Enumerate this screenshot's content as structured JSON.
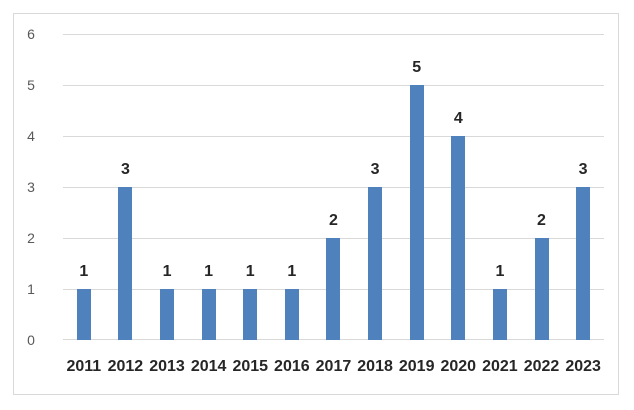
{
  "chart_data": {
    "type": "bar",
    "categories": [
      "2011",
      "2012",
      "2013",
      "2014",
      "2015",
      "2016",
      "2017",
      "2018",
      "2019",
      "2020",
      "2021",
      "2022",
      "2023"
    ],
    "values": [
      1,
      3,
      1,
      1,
      1,
      1,
      2,
      3,
      5,
      4,
      1,
      2,
      3
    ],
    "data_labels": [
      "1",
      "3",
      "1",
      "1",
      "1",
      "1",
      "2",
      "3",
      "5",
      "4",
      "1",
      "2",
      "3"
    ],
    "title": "",
    "xlabel": "",
    "ylabel": "",
    "ylim": [
      0,
      6
    ],
    "yticks": [
      0,
      1,
      2,
      3,
      4,
      5,
      6
    ],
    "grid": true,
    "legend": false,
    "colors": {
      "bar": "#4f81bd",
      "gridline": "#d9d9d9",
      "frame_border": "#d8d8d8",
      "ytick_label": "#595959",
      "xtick_label": "#262626",
      "data_label": "#262626",
      "background": "#ffffff"
    }
  }
}
